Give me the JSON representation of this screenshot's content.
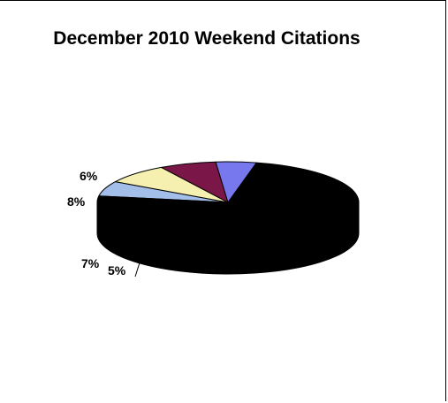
{
  "chart_data": {
    "type": "pie",
    "style": "3d",
    "title": "December 2010 Weekend Citations",
    "slices": [
      {
        "label": "6%",
        "value": 6,
        "color": "#a3bee8"
      },
      {
        "label": "8%",
        "value": 8,
        "color": "#f5f0b0"
      },
      {
        "label": "7%",
        "value": 7,
        "color": "#7a1748"
      },
      {
        "label": "5%",
        "value": 5,
        "color": "#7878ee"
      },
      {
        "label": "",
        "value": 74,
        "color": "#000000"
      }
    ],
    "legend": "none"
  }
}
